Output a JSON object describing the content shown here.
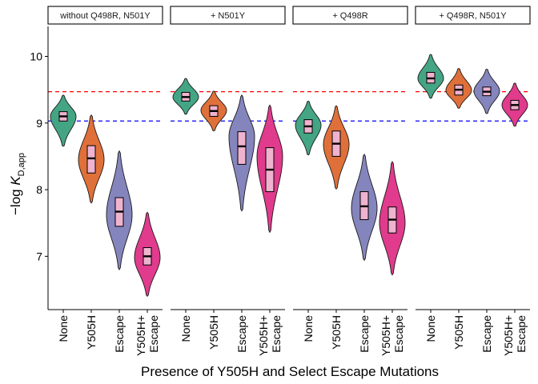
{
  "chart_data": {
    "type": "violin",
    "xlabel": "Presence of Y505H and Select Escape Mutations",
    "ylabel": {
      "prefix": "−log ",
      "main": "K",
      "subscript": "D,app"
    },
    "ylim": [
      6.2,
      10.45
    ],
    "yticks": [
      7,
      8,
      9,
      10
    ],
    "reference_lines": [
      {
        "value": 9.47,
        "color": "#ff0000",
        "style": "dashed"
      },
      {
        "value": 9.03,
        "color": "#0000ff",
        "style": "dashed"
      }
    ],
    "categories": [
      {
        "label": [
          "None"
        ],
        "color": "#44a584"
      },
      {
        "label": [
          "Y505H"
        ],
        "color": "#e0703a"
      },
      {
        "label": [
          "Escape"
        ],
        "color": "#8585bd"
      },
      {
        "label": [
          "Y505H+",
          "Escape"
        ],
        "color": "#e03b8c"
      }
    ],
    "panels": [
      {
        "title": "without Q498R, N501Y",
        "violins": [
          {
            "min": 8.65,
            "max": 9.42,
            "q1": 9.03,
            "median": 9.1,
            "q3": 9.17,
            "mode": 9.1
          },
          {
            "min": 7.8,
            "max": 9.12,
            "q1": 8.25,
            "median": 8.47,
            "q3": 8.66,
            "mode": 8.45
          },
          {
            "min": 6.8,
            "max": 8.58,
            "q1": 7.45,
            "median": 7.67,
            "q3": 7.88,
            "mode": 7.62
          },
          {
            "min": 6.4,
            "max": 7.66,
            "q1": 6.87,
            "median": 7.0,
            "q3": 7.13,
            "mode": 6.98
          }
        ]
      },
      {
        "title": "+ N501Y",
        "violins": [
          {
            "min": 9.13,
            "max": 9.67,
            "q1": 9.33,
            "median": 9.39,
            "q3": 9.46,
            "mode": 9.39
          },
          {
            "min": 8.88,
            "max": 9.48,
            "q1": 9.1,
            "median": 9.18,
            "q3": 9.26,
            "mode": 9.19
          },
          {
            "min": 7.68,
            "max": 9.42,
            "q1": 8.38,
            "median": 8.65,
            "q3": 8.87,
            "mode": 8.8
          },
          {
            "min": 7.36,
            "max": 9.27,
            "q1": 7.97,
            "median": 8.3,
            "q3": 8.63,
            "mode": 8.5
          }
        ]
      },
      {
        "title": "+ Q498R",
        "violins": [
          {
            "min": 8.52,
            "max": 9.33,
            "q1": 8.85,
            "median": 8.95,
            "q3": 9.05,
            "mode": 8.97
          },
          {
            "min": 8.01,
            "max": 9.26,
            "q1": 8.5,
            "median": 8.69,
            "q3": 8.88,
            "mode": 8.68
          },
          {
            "min": 6.94,
            "max": 8.53,
            "q1": 7.55,
            "median": 7.75,
            "q3": 7.97,
            "mode": 7.72
          },
          {
            "min": 6.72,
            "max": 8.42,
            "q1": 7.35,
            "median": 7.55,
            "q3": 7.74,
            "mode": 7.5
          }
        ]
      },
      {
        "title": "+ Q498R, N501Y",
        "violins": [
          {
            "min": 9.37,
            "max": 10.03,
            "q1": 9.6,
            "median": 9.67,
            "q3": 9.76,
            "mode": 9.67
          },
          {
            "min": 9.22,
            "max": 9.82,
            "q1": 9.42,
            "median": 9.5,
            "q3": 9.57,
            "mode": 9.49
          },
          {
            "min": 9.14,
            "max": 9.81,
            "q1": 9.41,
            "median": 9.47,
            "q3": 9.54,
            "mode": 9.48
          },
          {
            "min": 8.95,
            "max": 9.6,
            "q1": 9.2,
            "median": 9.27,
            "q3": 9.34,
            "mode": 9.27
          }
        ]
      }
    ]
  }
}
